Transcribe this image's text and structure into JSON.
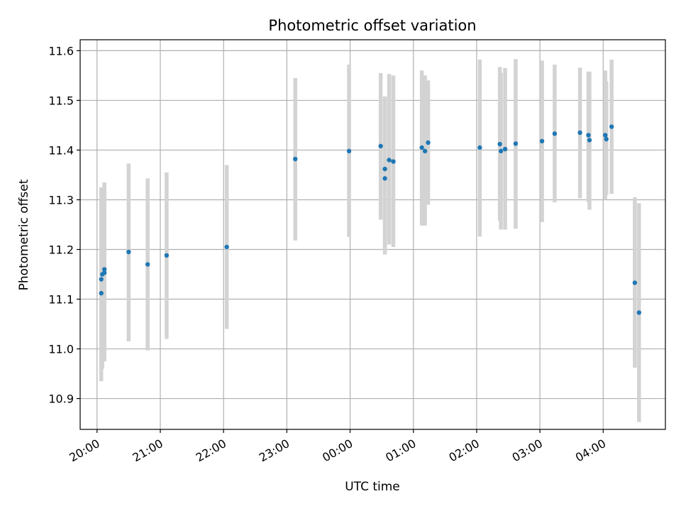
{
  "chart_data": {
    "type": "scatter",
    "title": "Photometric offset variation",
    "xlabel": "UTC time",
    "ylabel": "Photometric offset",
    "x_tick_labels": [
      "20:00",
      "21:00",
      "22:00",
      "23:00",
      "00:00",
      "01:00",
      "02:00",
      "03:00",
      "04:00"
    ],
    "x_tick_times": [
      "20:00",
      "21:00",
      "22:00",
      "23:00",
      "00:00",
      "01:00",
      "02:00",
      "03:00",
      "04:00"
    ],
    "y_ticks": [
      10.9,
      11.0,
      11.1,
      11.2,
      11.3,
      11.4,
      11.5,
      11.6
    ],
    "y_tick_labels": [
      "10.9",
      "11.0",
      "11.1",
      "11.2",
      "11.3",
      "11.4",
      "11.5",
      "11.6"
    ],
    "xlim": [
      "19:44",
      "04:59"
    ],
    "ylim": [
      10.838,
      11.622
    ],
    "grid": true,
    "colors": {
      "points": "#1f77b4",
      "errorbars": "#d3d3d3",
      "grid": "#b0b0b0"
    },
    "points": [
      {
        "t": "20:04",
        "y": 11.14,
        "lo": 10.95,
        "hi": 11.325
      },
      {
        "t": "20:04",
        "y": 11.112,
        "lo": 10.935,
        "hi": 11.325
      },
      {
        "t": "20:05",
        "y": 11.15,
        "lo": 10.96,
        "hi": 11.31
      },
      {
        "t": "20:07",
        "y": 11.153,
        "lo": 10.975,
        "hi": 11.335
      },
      {
        "t": "20:07",
        "y": 11.16,
        "lo": 10.98,
        "hi": 11.33
      },
      {
        "t": "20:30",
        "y": 11.195,
        "lo": 11.015,
        "hi": 11.373
      },
      {
        "t": "20:48",
        "y": 11.17,
        "lo": 10.997,
        "hi": 11.343
      },
      {
        "t": "21:06",
        "y": 11.188,
        "lo": 11.02,
        "hi": 11.355
      },
      {
        "t": "22:03",
        "y": 11.205,
        "lo": 11.04,
        "hi": 11.37
      },
      {
        "t": "23:08",
        "y": 11.382,
        "lo": 11.218,
        "hi": 11.545
      },
      {
        "t": "23:59",
        "y": 11.398,
        "lo": 11.225,
        "hi": 11.572
      },
      {
        "t": "00:29",
        "y": 11.408,
        "lo": 11.26,
        "hi": 11.555
      },
      {
        "t": "00:33",
        "y": 11.362,
        "lo": 11.19,
        "hi": 11.508
      },
      {
        "t": "00:33",
        "y": 11.343,
        "lo": 11.198,
        "hi": 11.49
      },
      {
        "t": "00:37",
        "y": 11.38,
        "lo": 11.21,
        "hi": 11.553
      },
      {
        "t": "00:41",
        "y": 11.377,
        "lo": 11.205,
        "hi": 11.55
      },
      {
        "t": "01:08",
        "y": 11.405,
        "lo": 11.248,
        "hi": 11.56
      },
      {
        "t": "01:11",
        "y": 11.398,
        "lo": 11.248,
        "hi": 11.55
      },
      {
        "t": "01:14",
        "y": 11.415,
        "lo": 11.29,
        "hi": 11.54
      },
      {
        "t": "02:03",
        "y": 11.405,
        "lo": 11.226,
        "hi": 11.582
      },
      {
        "t": "02:22",
        "y": 11.412,
        "lo": 11.258,
        "hi": 11.567
      },
      {
        "t": "02:23",
        "y": 11.398,
        "lo": 11.24,
        "hi": 11.555
      },
      {
        "t": "02:27",
        "y": 11.402,
        "lo": 11.24,
        "hi": 11.565
      },
      {
        "t": "02:37",
        "y": 11.413,
        "lo": 11.242,
        "hi": 11.583
      },
      {
        "t": "03:02",
        "y": 11.418,
        "lo": 11.255,
        "hi": 11.58
      },
      {
        "t": "03:14",
        "y": 11.433,
        "lo": 11.295,
        "hi": 11.572
      },
      {
        "t": "03:38",
        "y": 11.435,
        "lo": 11.303,
        "hi": 11.566
      },
      {
        "t": "03:46",
        "y": 11.43,
        "lo": 11.295,
        "hi": 11.558
      },
      {
        "t": "03:47",
        "y": 11.42,
        "lo": 11.28,
        "hi": 11.558
      },
      {
        "t": "04:02",
        "y": 11.43,
        "lo": 11.3,
        "hi": 11.56
      },
      {
        "t": "04:03",
        "y": 11.422,
        "lo": 11.31,
        "hi": 11.538
      },
      {
        "t": "04:08",
        "y": 11.447,
        "lo": 11.312,
        "hi": 11.582
      },
      {
        "t": "04:30",
        "y": 11.133,
        "lo": 10.962,
        "hi": 11.305
      },
      {
        "t": "04:34",
        "y": 11.073,
        "lo": 10.853,
        "hi": 11.293
      }
    ]
  }
}
